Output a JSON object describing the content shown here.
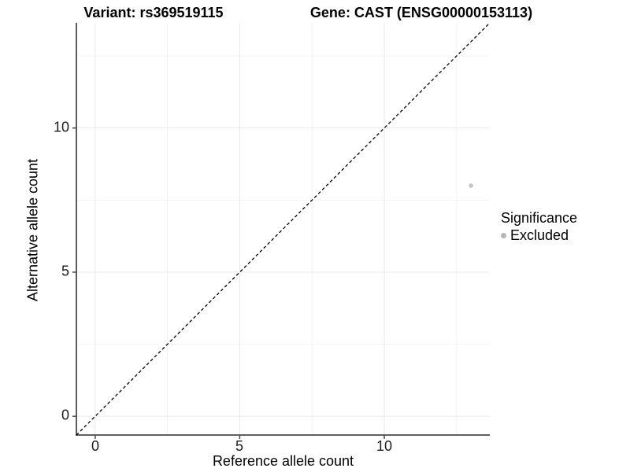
{
  "titles": {
    "variant": "Variant: rs369519115",
    "gene": "Gene: CAST (ENSG00000153113)"
  },
  "axes": {
    "x_label": "Reference allele count",
    "y_label": "Alternative allele count",
    "x_ticks": [
      "0",
      "5",
      "10"
    ],
    "y_ticks": [
      "0",
      "5",
      "10"
    ]
  },
  "legend": {
    "title": "Significance",
    "items": [
      {
        "label": "Excluded",
        "color": "#b5b5b5"
      }
    ]
  },
  "colors": {
    "background": "#ffffff",
    "axis_line": "#4a4a4a",
    "grid_major": "#e9e9e9",
    "grid_minor": "#f3f3f3",
    "identity_line": "#000000",
    "tick_label": "#1c1c1c"
  },
  "chart_data": {
    "type": "scatter",
    "title": "Variant: rs369519115 | Gene: CAST (ENSG00000153113)",
    "xlabel": "Reference allele count",
    "ylabel": "Alternative allele count",
    "xlim": [
      -0.65,
      13.65
    ],
    "ylim": [
      -0.65,
      13.65
    ],
    "x_tick_values": [
      0,
      5,
      10
    ],
    "y_tick_values": [
      0,
      5,
      10
    ],
    "minor_tick_values": [
      2.5,
      7.5,
      12.5
    ],
    "grid": "major and minor, very light gray",
    "legend_position": "right",
    "series": [
      {
        "name": "Excluded",
        "color": "#c5c5c5",
        "point_radius": 2.8,
        "points": [
          {
            "x": 13,
            "y": 8
          }
        ]
      }
    ],
    "reference_line": {
      "slope": 1,
      "intercept": 0,
      "style": "dashed",
      "color": "#000000"
    }
  }
}
